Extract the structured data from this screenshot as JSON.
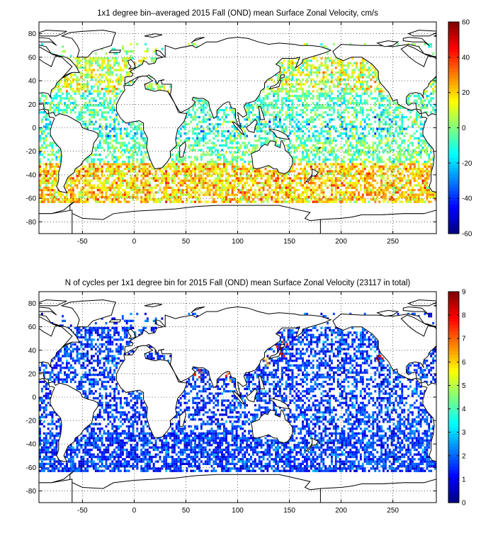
{
  "chart_data": [
    {
      "type": "heatmap",
      "title": "1x1 degree bin–averaged 2015 Fall (OND) mean Surface Zonal Velocity, cm/s",
      "xlim": [
        -92,
        292
      ],
      "ylim": [
        -90,
        90
      ],
      "xticks": [
        -50,
        0,
        50,
        100,
        150,
        200,
        250
      ],
      "yticks": [
        80,
        60,
        40,
        20,
        0,
        -20,
        -40,
        -60,
        -80
      ],
      "grid": true,
      "colorbar": {
        "min": -60,
        "max": 60,
        "ticks": [
          60,
          40,
          20,
          0,
          -20,
          -40,
          -60
        ],
        "colormap": "jet"
      },
      "zones": [
        {
          "lat": [
            30,
            60
          ],
          "mean": 8,
          "spread": 18,
          "density": 0.55
        },
        {
          "lat": [
            10,
            30
          ],
          "mean": -6,
          "spread": 15,
          "density": 0.5
        },
        {
          "lat": [
            -10,
            10
          ],
          "mean": -10,
          "spread": 22,
          "density": 0.45
        },
        {
          "lat": [
            -30,
            -10
          ],
          "mean": -3,
          "spread": 15,
          "density": 0.5
        },
        {
          "lat": [
            -65,
            -30
          ],
          "mean": 20,
          "spread": 18,
          "density": 0.7
        }
      ]
    },
    {
      "type": "heatmap",
      "title": "N of cycles per 1x1 degree bin for 2015 Fall (OND) mean Surface Zonal Velocity (23117 in total)",
      "xlim": [
        -92,
        292
      ],
      "ylim": [
        -90,
        90
      ],
      "xticks": [
        -50,
        0,
        50,
        100,
        150,
        200,
        250
      ],
      "yticks": [
        80,
        60,
        40,
        20,
        0,
        -20,
        -40,
        -60,
        -80
      ],
      "grid": true,
      "total_cycles": 23117,
      "colorbar": {
        "min": 0,
        "max": 9,
        "ticks": [
          9,
          8,
          7,
          6,
          5,
          4,
          3,
          2,
          1,
          0
        ],
        "colormap": "jet"
      },
      "hotspots": [
        {
          "lon": 140,
          "lat": 38,
          "value": 9
        },
        {
          "lon": 237,
          "lat": 32,
          "value": 9
        },
        {
          "lon": 60,
          "lat": 20,
          "value": 8
        },
        {
          "lon": 90,
          "lat": 17,
          "value": 8
        },
        {
          "lon": 143,
          "lat": 42,
          "value": 8
        },
        {
          "lon": 128,
          "lat": 30,
          "value": 7
        },
        {
          "lon": 5,
          "lat": 42,
          "value": 6
        }
      ]
    }
  ]
}
